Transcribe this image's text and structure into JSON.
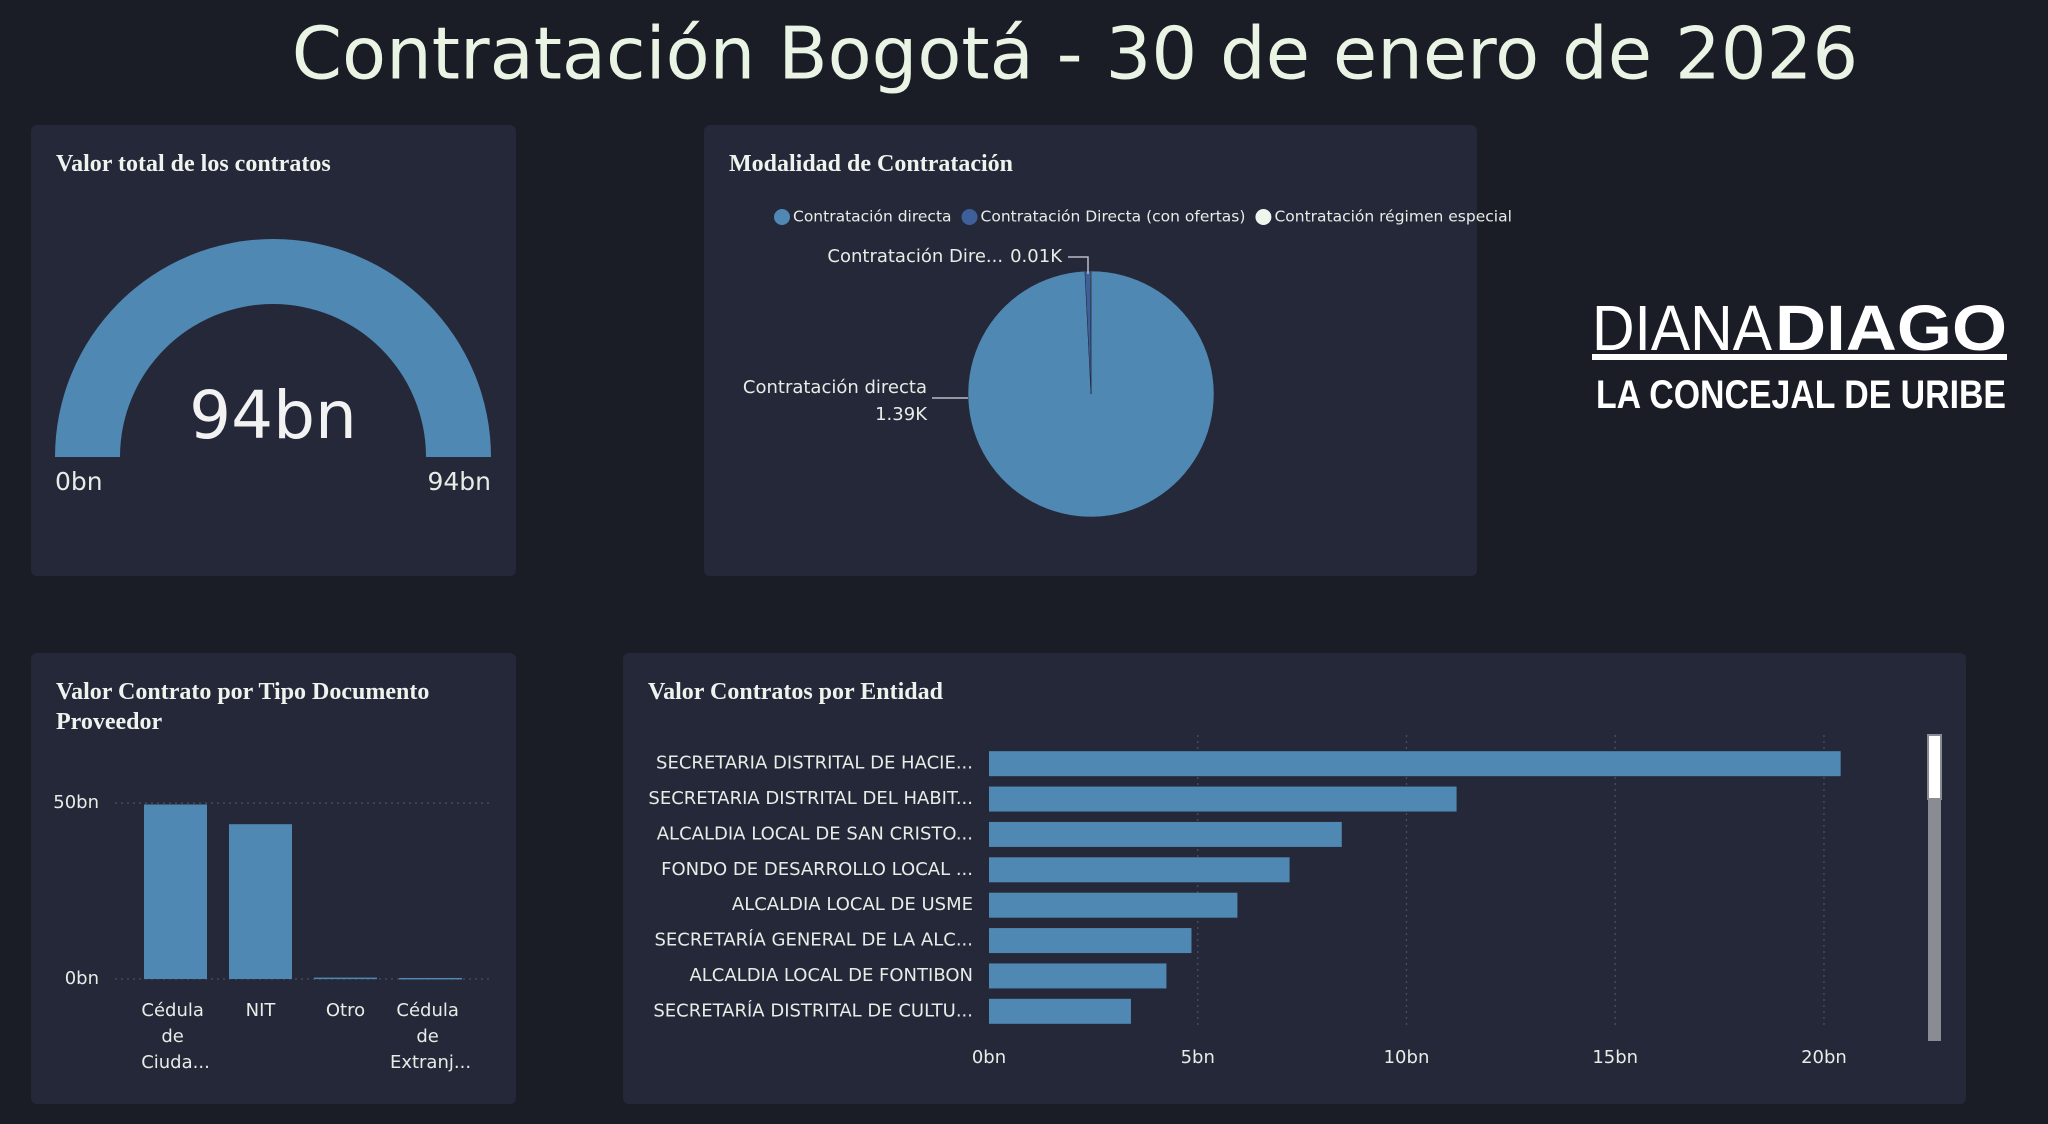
{
  "header": {
    "title": "Contratación Bogotá - 30 de enero de 2026"
  },
  "logo": {
    "name_first": "DIANA",
    "name_last": "DIAGO",
    "tagline": "LA CONCEJAL DE URIBE"
  },
  "chart_data": [
    {
      "type": "gauge",
      "title": "Valor total de los contratos",
      "values": [
        94
      ],
      "value_labels": [
        "94bn"
      ],
      "color": "#4f88b2",
      "ylim": [
        0,
        94
      ],
      "yticks": [
        {
          "value": 0,
          "label": "0bn"
        },
        {
          "value": 94,
          "label": "94bn"
        }
      ]
    },
    {
      "type": "pie",
      "title": "Modalidad de Contratación",
      "categories": [
        "Contratación directa",
        "Contratación Directa (con ofertas)",
        "Contratación régimen especial"
      ],
      "values": [
        1.39,
        0.01,
        0.001
      ],
      "value_labels": [
        "1.39K",
        "0.01K",
        null
      ],
      "slice_labels": [
        "Contratación directa",
        "Contratación Dire...",
        null
      ],
      "colors": [
        "#4f88b2",
        "#3d5f9a",
        "#eef5ec"
      ],
      "legend": "top"
    },
    {
      "type": "bar",
      "orientation": "vertical",
      "title": "Valor Contrato por Tipo Documento Proveedor",
      "categories": [
        "Cédula de Ciuda...",
        "NIT",
        "Otro",
        "Cédula de Extranj..."
      ],
      "values": [
        49.6,
        44,
        0.4,
        0.3
      ],
      "color": "#4f88b2",
      "ylim": [
        0,
        54
      ],
      "yticks": [
        {
          "value": 0,
          "label": "0bn"
        },
        {
          "value": 50,
          "label": "50bn"
        }
      ],
      "grid": true
    },
    {
      "type": "bar",
      "orientation": "horizontal",
      "title": "Valor Contratos por Entidad",
      "categories": [
        "SECRETARIA DISTRITAL DE HACIE...",
        "SECRETARIA DISTRITAL DEL HABIT...",
        "ALCALDIA LOCAL DE SAN CRISTO...",
        "FONDO DE DESARROLLO LOCAL ...",
        "ALCALDIA LOCAL DE USME",
        "SECRETARÍA GENERAL DE LA ALC...",
        "ALCALDIA LOCAL DE FONTIBON",
        "SECRETARÍA DISTRITAL DE CULTU..."
      ],
      "values": [
        20.4,
        11.2,
        8.45,
        7.2,
        5.95,
        4.85,
        4.25,
        3.4
      ],
      "color": "#4f88b2",
      "xlim": [
        0,
        22.3
      ],
      "xticks": [
        {
          "value": 0,
          "label": "0bn"
        },
        {
          "value": 5,
          "label": "5bn"
        },
        {
          "value": 10,
          "label": "10bn"
        },
        {
          "value": 15,
          "label": "15bn"
        },
        {
          "value": 20,
          "label": "20bn"
        }
      ],
      "grid": true
    }
  ]
}
